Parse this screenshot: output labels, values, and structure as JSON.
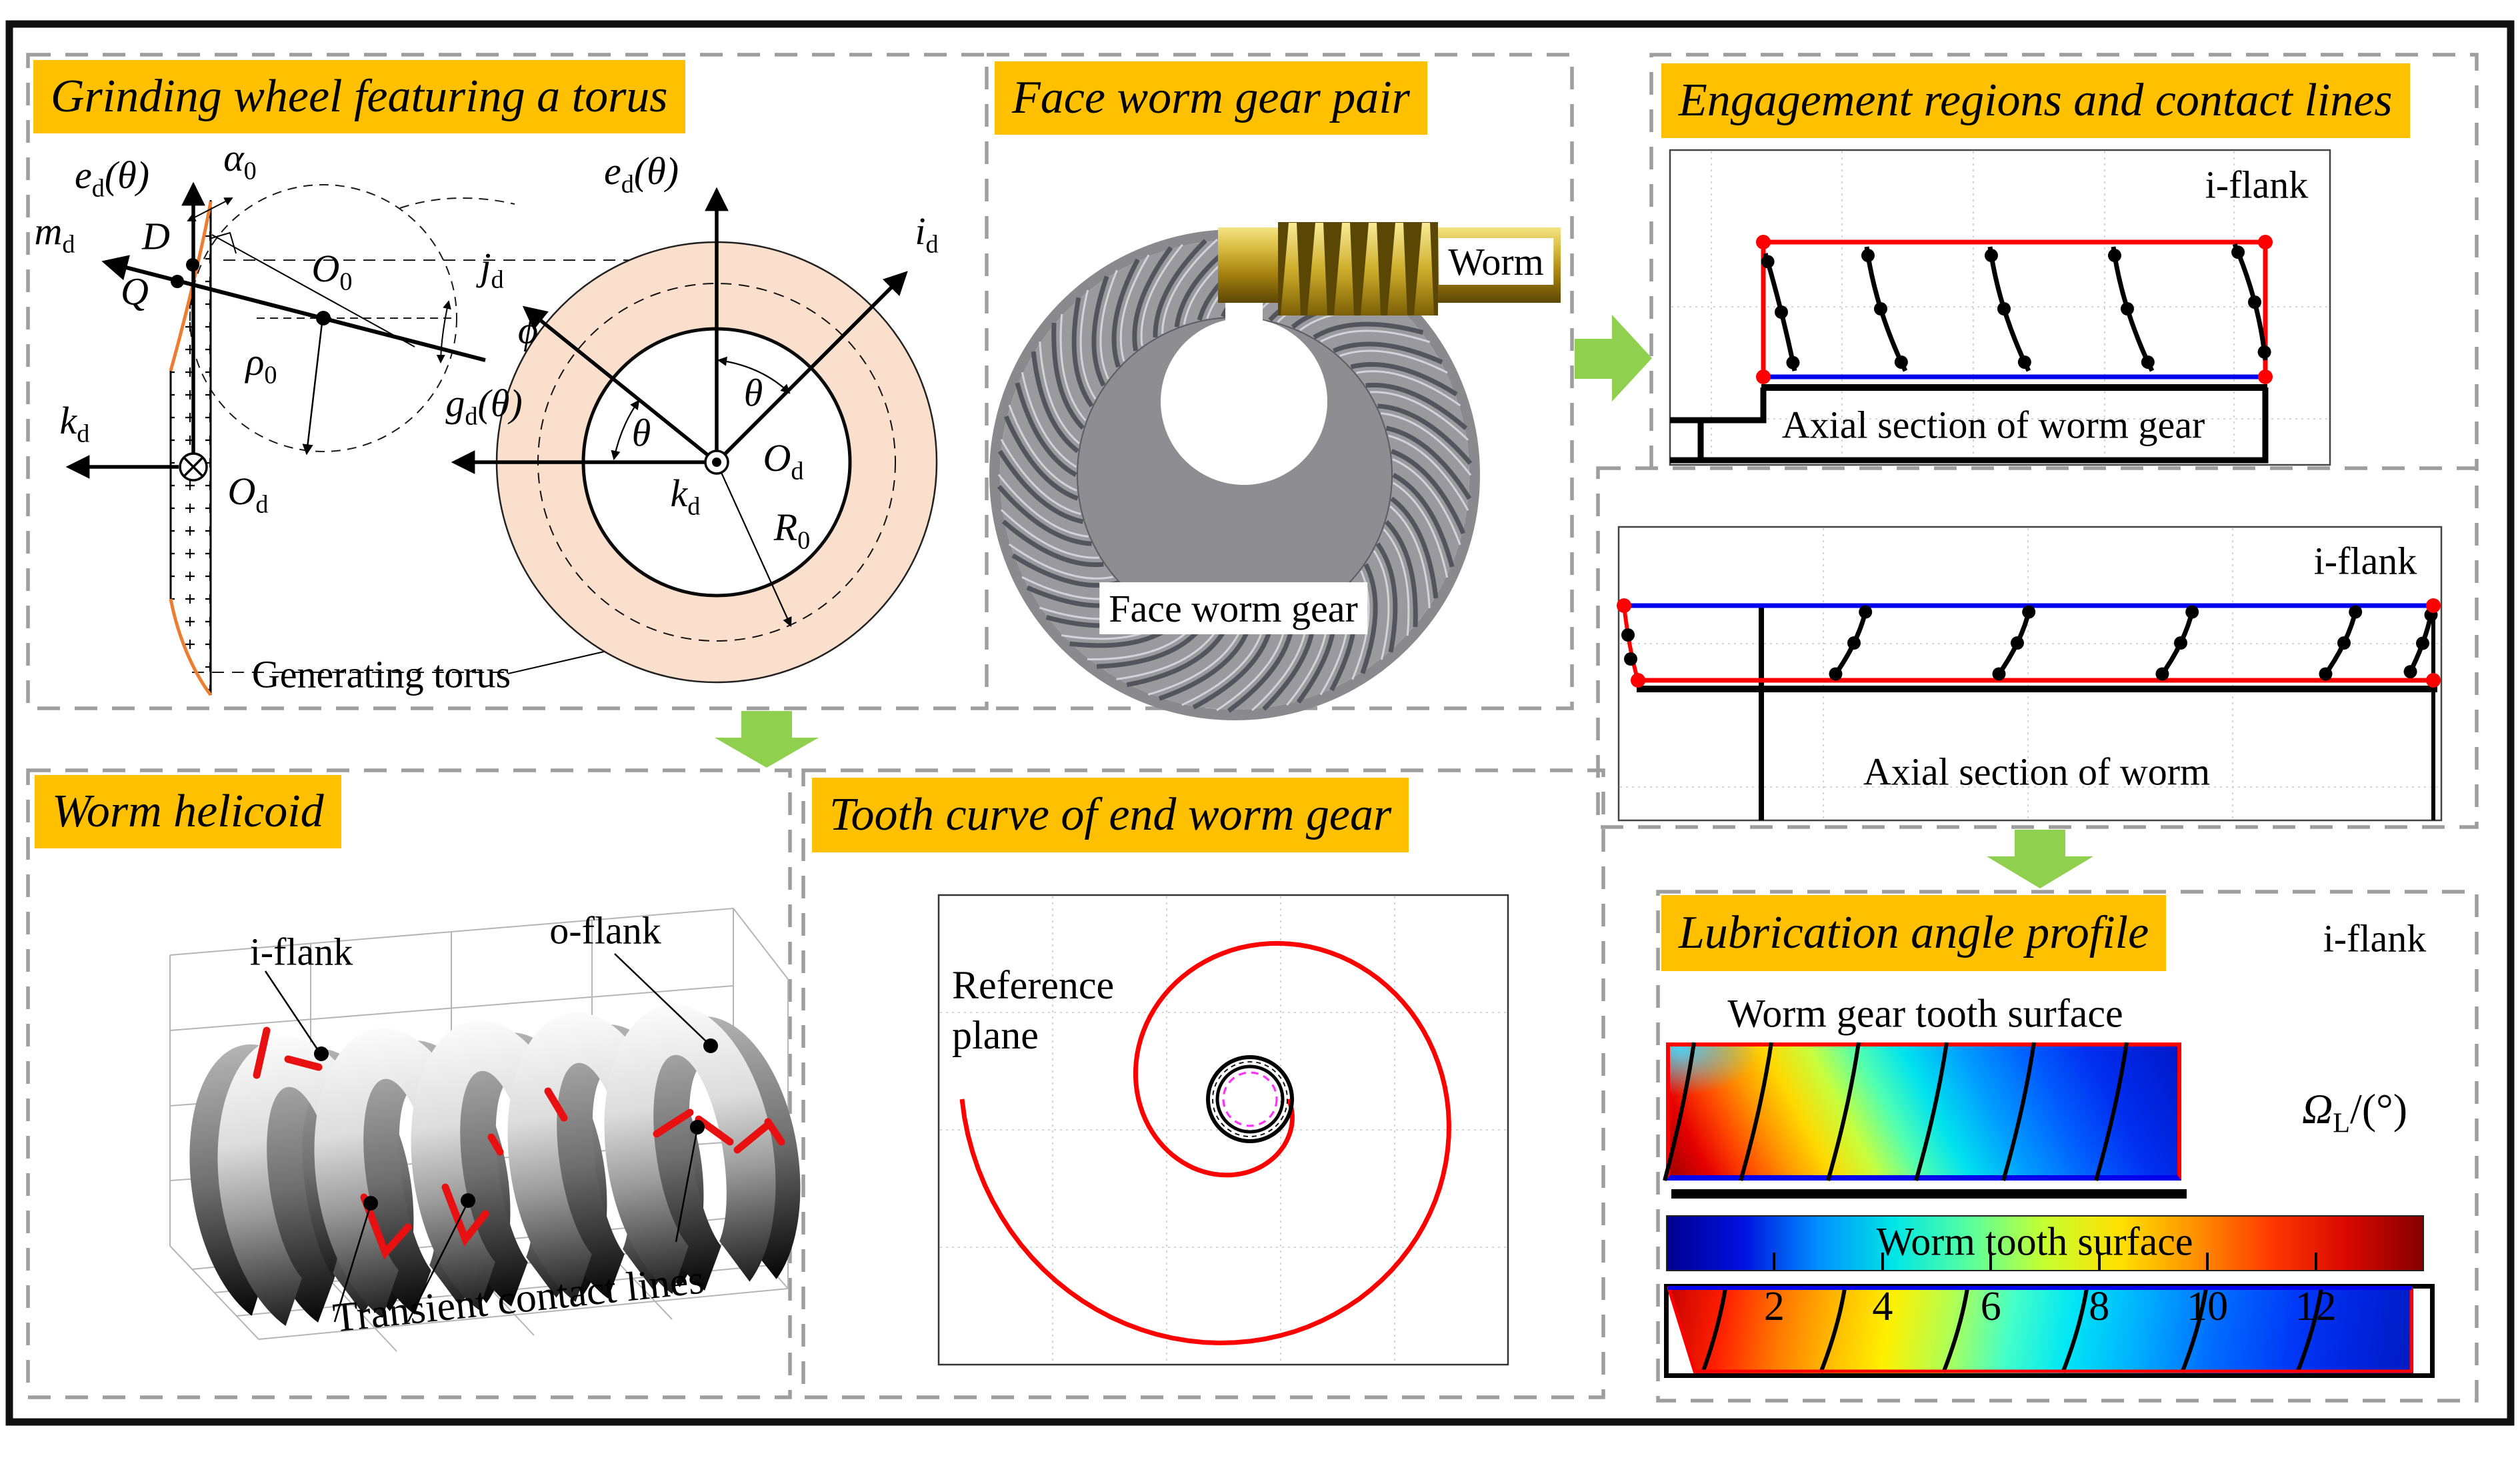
{
  "colors": {
    "accent-yellow": "#FFC000",
    "arrow-green": "#8FD14F",
    "torus-fill": "#FAE0CC",
    "profile-orange": "#ED7D31",
    "contact-red": "#FF0000",
    "engagement-blue": "#0000EE",
    "magenta-dash": "#FF30FF",
    "worm-gold": "#C9A227",
    "gear-gray": "#98989C",
    "panel-border": "#9E9E9E"
  },
  "panels": {
    "grinding": {
      "title": "Grinding wheel featuring a torus",
      "labels": {
        "ed": {
          "pre": "e",
          "sub": "d",
          "post": "(θ)"
        },
        "alpha0": {
          "pre": "α",
          "sub": "0"
        },
        "md": {
          "pre": "m",
          "sub": "d"
        },
        "d_point": "D",
        "q_point": "Q",
        "o0": {
          "pre": "O",
          "sub": "0"
        },
        "rho0": {
          "pre": "ρ",
          "sub": "0"
        },
        "phi": "ϕ",
        "kd": {
          "pre": "k",
          "sub": "d"
        },
        "od": {
          "pre": "O",
          "sub": "d"
        },
        "generating_torus": "Generating torus"
      },
      "torus_labels": {
        "ed": {
          "pre": "e",
          "sub": "d",
          "post": "(θ)"
        },
        "id": {
          "pre": "i",
          "sub": "d"
        },
        "jd": {
          "pre": "j",
          "sub": "d"
        },
        "gd": {
          "pre": "g",
          "sub": "d",
          "post": "(θ)"
        },
        "theta1": "θ",
        "theta2": "θ",
        "kd": {
          "pre": "k",
          "sub": "d"
        },
        "od": {
          "pre": "O",
          "sub": "d"
        },
        "r0": {
          "pre": "R",
          "sub": "0"
        }
      }
    },
    "gear_pair": {
      "title": "Face worm gear pair",
      "worm_label": "Worm",
      "gear_label": "Face worm gear"
    },
    "engagement": {
      "title": "Engagement regions and contact lines",
      "plot_worm_gear": {
        "flank": "i-flank",
        "caption": "Axial section of worm gear"
      },
      "plot_worm": {
        "flank": "i-flank",
        "caption": "Axial section of worm"
      }
    },
    "helicoid": {
      "title": "Worm helicoid",
      "i_flank": "i-flank",
      "o_flank": "o-flank",
      "contact_label": "Transient contact lines"
    },
    "tooth_curve": {
      "title": "Tooth curve of end worm gear",
      "plane_label": "Reference plane"
    },
    "lubrication": {
      "title": "Lubrication angle profile",
      "flank": "i-flank",
      "gear_surface_caption": "Worm gear tooth surface",
      "worm_surface_caption": "Worm tooth surface",
      "colorbar": {
        "label": {
          "pre": "Ω",
          "sub": "L",
          "post": "/(°)"
        },
        "ticks": [
          2,
          4,
          6,
          8,
          10,
          12
        ],
        "min": 0,
        "max": 14,
        "stops": [
          "#00008F",
          "#0010E0",
          "#0090FF",
          "#00E6E6",
          "#58FF9E",
          "#C6FF30",
          "#FFE000",
          "#FF9000",
          "#FF3800",
          "#D80800",
          "#860000"
        ]
      }
    }
  }
}
